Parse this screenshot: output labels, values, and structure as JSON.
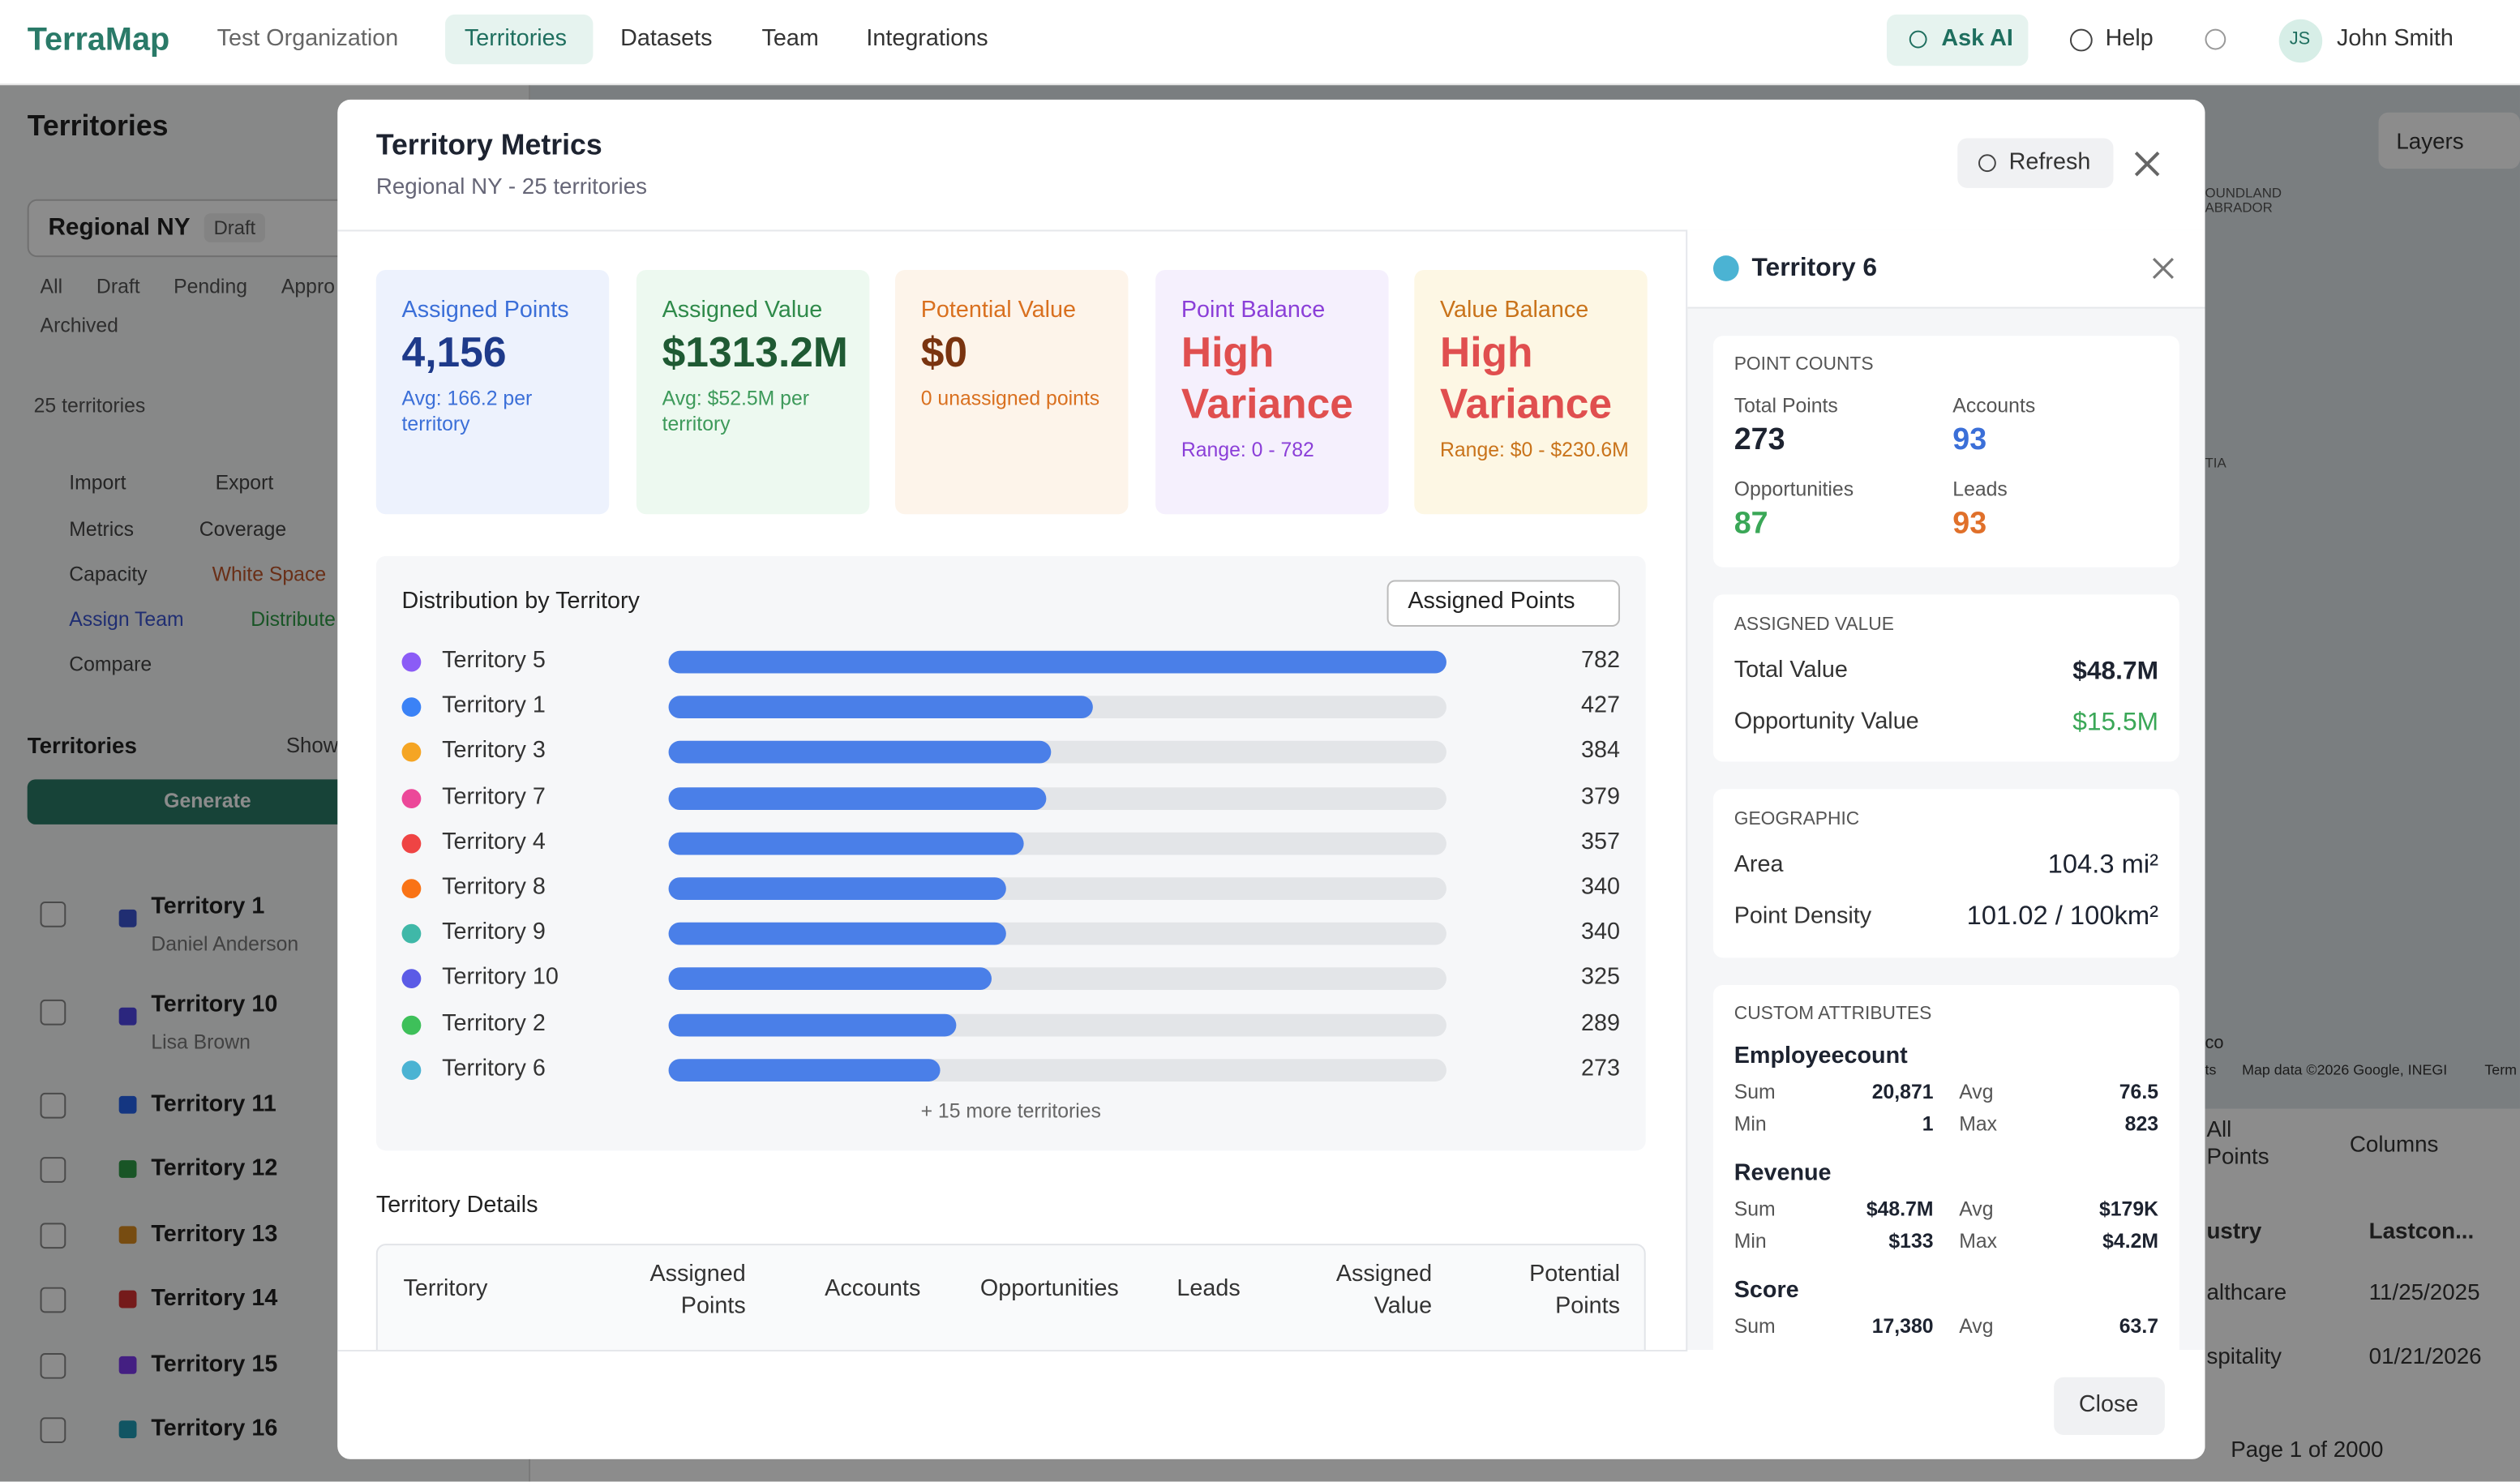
{
  "nav": {
    "brand": "TerraMap",
    "org": "Test Organization",
    "links": [
      "Territories",
      "Datasets",
      "Team",
      "Integrations"
    ],
    "ask": "Ask AI",
    "help": "Help",
    "avatar": "JS",
    "user": "John Smith"
  },
  "sidebar": {
    "title": "Territories",
    "plan": "Regional NY",
    "status": "Draft",
    "filters": [
      "All",
      "Draft",
      "Pending",
      "Appro",
      "Archived"
    ],
    "count": "25 territories",
    "tools": [
      "Import",
      "Export",
      "Metrics",
      "Coverage",
      "Capacity",
      "White Space",
      "Assign Team",
      "Distribute",
      "Compare"
    ],
    "section": "Territories",
    "show": "Show",
    "generate": "Generate",
    "list": [
      {
        "name": "Territory 1",
        "owner": "Daniel Anderson",
        "color": "#3b55d0"
      },
      {
        "name": "Territory 10",
        "owner": "Lisa Brown",
        "color": "#4f46e5"
      },
      {
        "name": "Territory 11",
        "color": "#2563eb"
      },
      {
        "name": "Territory 12",
        "color": "#2e9b45"
      },
      {
        "name": "Territory 13",
        "color": "#d98a1f"
      },
      {
        "name": "Territory 14",
        "color": "#d63232"
      },
      {
        "name": "Territory 15",
        "color": "#7c3aed"
      },
      {
        "name": "Territory 16",
        "color": "#1f9bb5"
      }
    ]
  },
  "map": {
    "layers": "Layers",
    "labels": [
      "OUNDLAND",
      "ABRADOR",
      "TIA",
      "co",
      "ts"
    ],
    "attribution": "Map data ©2026 Google, INEGI",
    "terms": "Term"
  },
  "background_table": {
    "points": "All Points",
    "columns": "Columns",
    "headers": [
      "ustry",
      "Lastcon..."
    ],
    "rows": [
      [
        "althcare",
        "11/25/2025"
      ],
      [
        "spitality",
        "01/21/2026"
      ]
    ],
    "page": "Page 1 of 2000"
  },
  "modal": {
    "title": "Territory Metrics",
    "subtitle": "Regional NY - 25 territories",
    "refresh": "Refresh",
    "close": "Close",
    "cards": [
      {
        "label": "Assigned Points",
        "value": "4,156",
        "sub": "Avg: 166.2 per territory"
      },
      {
        "label": "Assigned Value",
        "value": "$1313.2M",
        "sub": "Avg: $52.5M per territory"
      },
      {
        "label": "Potential Value",
        "value": "$0",
        "sub": "0 unassigned points"
      },
      {
        "label": "Point Balance",
        "value": "High Variance",
        "sub": "Range: 0 - 782"
      },
      {
        "label": "Value Balance",
        "value": "High Variance",
        "sub": "Range: $0 - $230.6M"
      }
    ],
    "distribution": {
      "title": "Distribution by Territory",
      "metric": "Assigned Points",
      "bar_color": "#4a7fe8",
      "categories": [
        "Territory 5",
        "Territory 1",
        "Territory 3",
        "Territory 7",
        "Territory 4",
        "Territory 8",
        "Territory 9",
        "Territory 10",
        "Territory 2",
        "Territory 6"
      ],
      "values": [
        782,
        427,
        384,
        379,
        357,
        340,
        340,
        325,
        289,
        273
      ],
      "colors": [
        "#8b5cf6",
        "#3b82f6",
        "#f5a524",
        "#ec4899",
        "#ef4444",
        "#f97316",
        "#3fb8a8",
        "#5b5be6",
        "#3ec05a",
        "#4bb3d3"
      ],
      "more": "+ 15 more territories"
    },
    "details": {
      "title": "Territory Details",
      "columns": [
        "Territory",
        "Assigned Points",
        "Accounts",
        "Opportunities",
        "Leads",
        "Assigned Value",
        "Potential Points"
      ]
    }
  },
  "panel": {
    "title": "Territory 6",
    "color": "#4bb3d3",
    "point_counts": {
      "heading": "POINT COUNTS",
      "items": [
        {
          "label": "Total Points",
          "value": "273"
        },
        {
          "label": "Accounts",
          "value": "93"
        },
        {
          "label": "Opportunities",
          "value": "87"
        },
        {
          "label": "Leads",
          "value": "93"
        }
      ]
    },
    "assigned_value": {
      "heading": "ASSIGNED VALUE",
      "rows": [
        {
          "label": "Total Value",
          "value": "$48.7M"
        },
        {
          "label": "Opportunity Value",
          "value": "$15.5M"
        }
      ]
    },
    "geographic": {
      "heading": "GEOGRAPHIC",
      "rows": [
        {
          "label": "Area",
          "value": "104.3 mi²"
        },
        {
          "label": "Point Density",
          "value": "101.02 / 100km²"
        }
      ]
    },
    "custom": {
      "heading": "CUSTOM ATTRIBUTES",
      "attributes": [
        {
          "name": "Employeecount",
          "stats": [
            {
              "label": "Sum",
              "value": "20,871"
            },
            {
              "label": "Avg",
              "value": "76.5"
            },
            {
              "label": "Min",
              "value": "1"
            },
            {
              "label": "Max",
              "value": "823"
            }
          ]
        },
        {
          "name": "Revenue",
          "stats": [
            {
              "label": "Sum",
              "value": "$48.7M"
            },
            {
              "label": "Avg",
              "value": "$179K"
            },
            {
              "label": "Min",
              "value": "$133"
            },
            {
              "label": "Max",
              "value": "$4.2M"
            }
          ]
        },
        {
          "name": "Score",
          "stats": [
            {
              "label": "Sum",
              "value": "17,380"
            },
            {
              "label": "Avg",
              "value": "63.7"
            }
          ]
        }
      ]
    }
  }
}
